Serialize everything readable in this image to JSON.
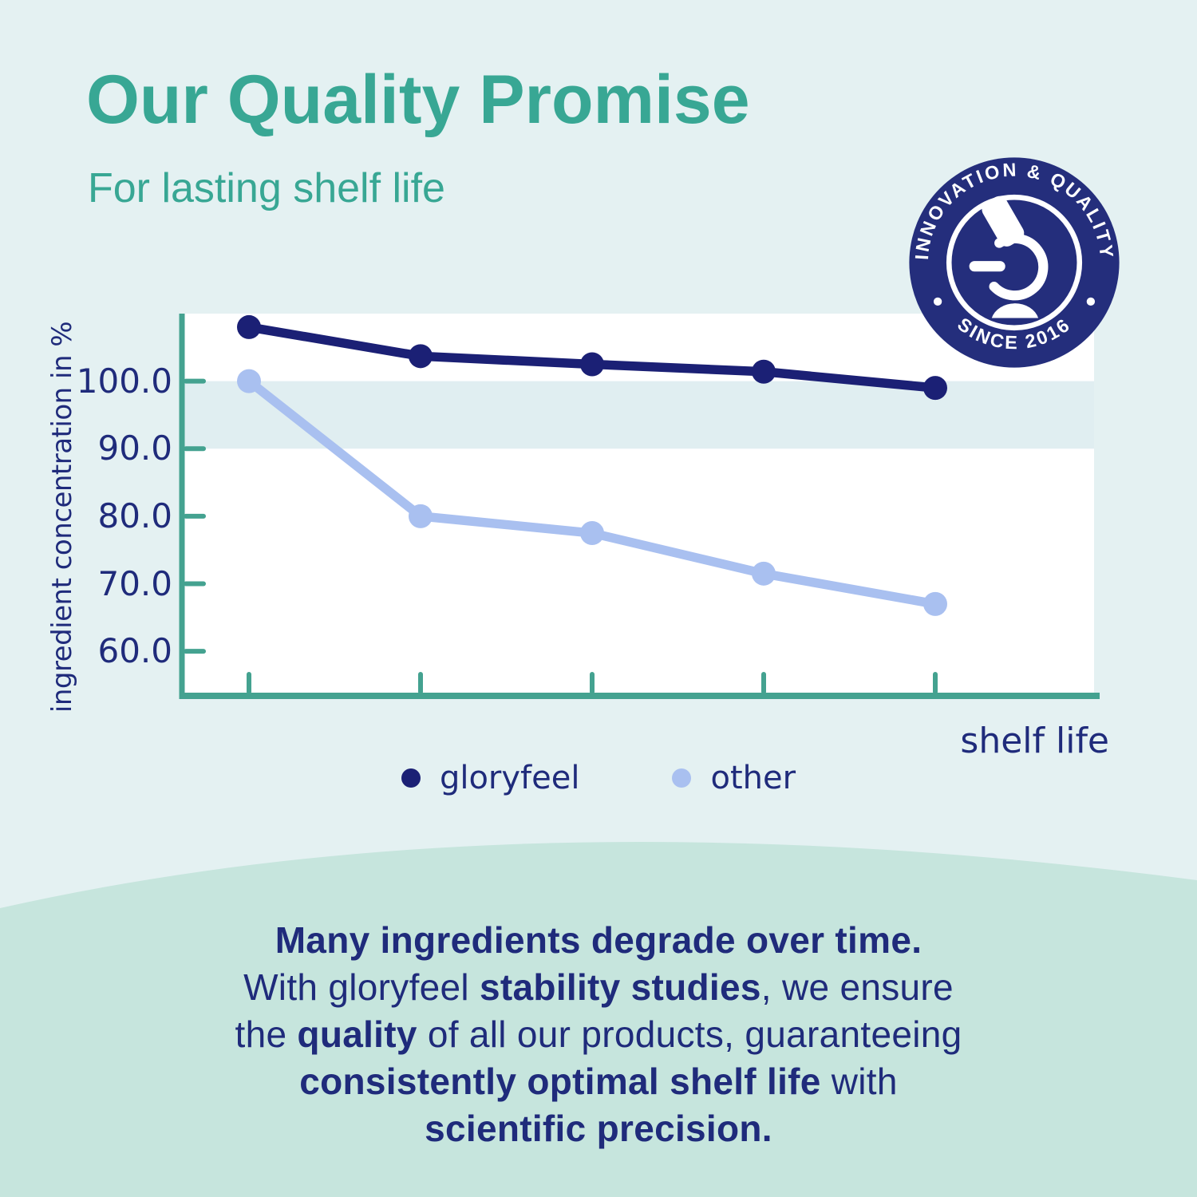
{
  "header": {
    "title": "Our Quality Promise",
    "subtitle": "For lasting shelf life"
  },
  "badge": {
    "top_text": "INNOVATION & QUALITY",
    "bottom_text": "SINCE 2016",
    "icon": "microscope-icon"
  },
  "chart_data": {
    "type": "line",
    "title": "",
    "xlabel": "shelf life",
    "ylabel": "ingredient concentration in %",
    "x_tick_labels": [
      "",
      "",
      "",
      "",
      ""
    ],
    "yticks": [
      100.0,
      90.0,
      80.0,
      70.0,
      60.0
    ],
    "ytick_labels": [
      "100.0",
      "90.0",
      "80.0",
      "70.0",
      "60.0"
    ],
    "ylim": [
      53.4,
      110.0
    ],
    "grid": false,
    "legend_position": "bottom",
    "highlight_band": {
      "from": 90,
      "to": 100
    },
    "series": [
      {
        "name": "gloryfeel",
        "color": "#1b2075",
        "values": [
          108.0,
          103.7,
          102.5,
          101.4,
          99.0
        ]
      },
      {
        "name": "other",
        "color": "#a9c0f0",
        "values": [
          100.0,
          80.0,
          77.5,
          71.5,
          67.0
        ]
      }
    ]
  },
  "body": {
    "lines": [
      [
        {
          "t": "Many ingredients degrade over time.",
          "b": true
        }
      ],
      [
        {
          "t": "With gloryfeel ",
          "b": false
        },
        {
          "t": "stability studies",
          "b": true
        },
        {
          "t": ", we ensure",
          "b": false
        }
      ],
      [
        {
          "t": "the ",
          "b": false
        },
        {
          "t": "quality",
          "b": true
        },
        {
          "t": " of all our products, guaranteeing",
          "b": false
        }
      ],
      [
        {
          "t": "consistently optimal shelf life",
          "b": true
        },
        {
          "t": " with",
          "b": false
        }
      ],
      [
        {
          "t": "scientific precision.",
          "b": true
        }
      ]
    ]
  },
  "colors": {
    "background": "#e4f1f2",
    "bottom_wave": "#c6e5dd",
    "heading_teal": "#38a794",
    "text_navy": "#1f2b7b",
    "axis_teal": "#44a290",
    "plot_white": "#ffffff",
    "plot_band": "#e0eef1",
    "badge_navy": "#242e7c"
  }
}
